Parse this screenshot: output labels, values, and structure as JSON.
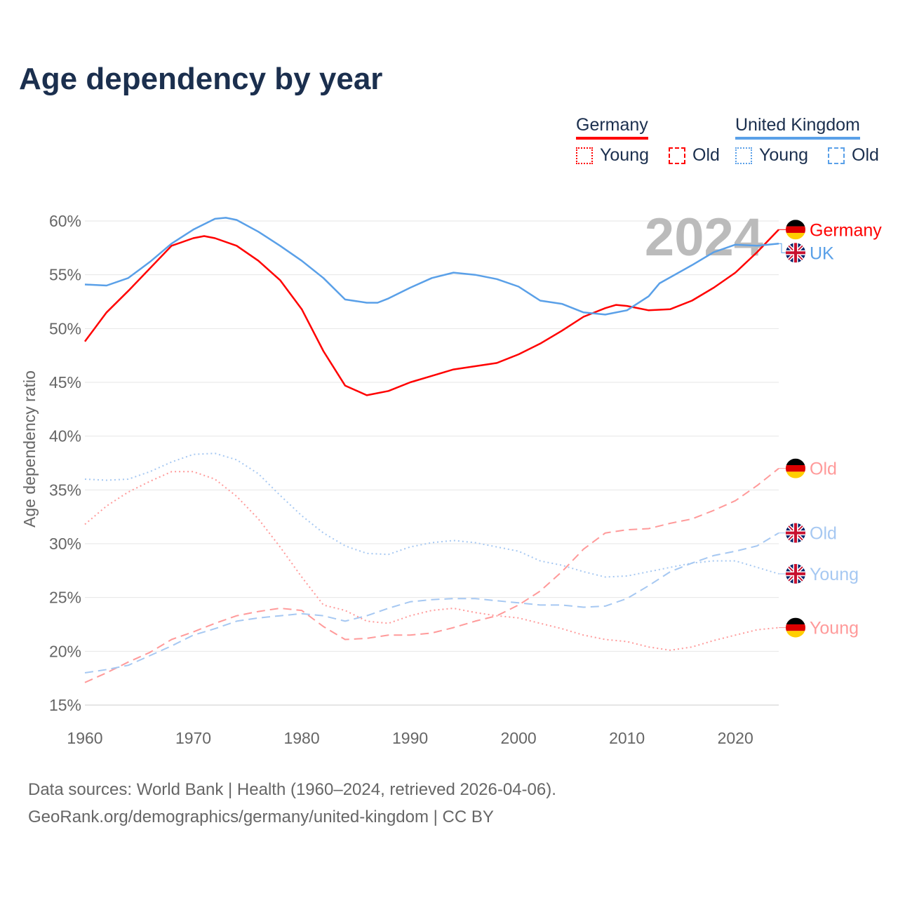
{
  "chart_data": {
    "type": "line",
    "title": "Age dependency by year",
    "xlabel": "",
    "ylabel": "Age dependency ratio",
    "xlim": [
      1960,
      2024
    ],
    "ylim": [
      15,
      60
    ],
    "x_ticks": [
      "1960",
      "1970",
      "1980",
      "1990",
      "2000",
      "2010",
      "2020"
    ],
    "y_ticks": [
      "15%",
      "20%",
      "25%",
      "30%",
      "35%",
      "40%",
      "45%",
      "50%",
      "55%",
      "60%"
    ],
    "y_tick_values": [
      15,
      20,
      25,
      30,
      35,
      40,
      45,
      50,
      55,
      60
    ],
    "grid": true,
    "year_overlay": "2024",
    "legend": {
      "placement": "top-right",
      "groups": [
        {
          "name": "Germany",
          "color": "#ff0000",
          "young": "Young",
          "old": "Old",
          "light": "#ff9a9a"
        },
        {
          "name": "United Kingdom",
          "color": "#5aa0e8",
          "young": "Young",
          "old": "Old",
          "light": "#a6c8f2"
        }
      ]
    },
    "series": [
      {
        "name": "Germany",
        "end_label": "Germany",
        "country": "de",
        "color": "#ff0000",
        "style": "solid",
        "x": [
          1960,
          1962,
          1964,
          1966,
          1968,
          1970,
          1971,
          1972,
          1974,
          1976,
          1978,
          1980,
          1982,
          1984,
          1986,
          1988,
          1990,
          1992,
          1994,
          1996,
          1998,
          2000,
          2002,
          2004,
          2006,
          2008,
          2009,
          2010,
          2012,
          2014,
          2016,
          2018,
          2020,
          2022,
          2024
        ],
        "values": [
          48.8,
          51.5,
          53.5,
          55.6,
          57.7,
          58.4,
          58.6,
          58.4,
          57.7,
          56.3,
          54.5,
          51.8,
          47.9,
          44.7,
          43.8,
          44.2,
          45.0,
          45.6,
          46.2,
          46.5,
          46.8,
          47.6,
          48.6,
          49.8,
          51.1,
          51.9,
          52.2,
          52.1,
          51.7,
          51.8,
          52.6,
          53.8,
          55.2,
          57.1,
          59.2
        ]
      },
      {
        "name": "United Kingdom",
        "end_label": "UK",
        "country": "uk",
        "color": "#5aa0e8",
        "style": "solid",
        "x": [
          1960,
          1962,
          1964,
          1966,
          1968,
          1970,
          1972,
          1973,
          1974,
          1976,
          1978,
          1980,
          1982,
          1984,
          1986,
          1987,
          1988,
          1990,
          1992,
          1994,
          1996,
          1998,
          2000,
          2002,
          2004,
          2006,
          2008,
          2010,
          2012,
          2013,
          2016,
          2018,
          2020,
          2022,
          2024
        ],
        "values": [
          54.1,
          54.0,
          54.7,
          56.2,
          57.9,
          59.2,
          60.2,
          60.3,
          60.1,
          59.0,
          57.7,
          56.3,
          54.7,
          52.7,
          52.4,
          52.4,
          52.8,
          53.8,
          54.7,
          55.2,
          55.0,
          54.6,
          53.9,
          52.6,
          52.3,
          51.5,
          51.3,
          51.7,
          53.0,
          54.2,
          55.9,
          57.1,
          57.8,
          57.7,
          57.9
        ]
      },
      {
        "name": "Germany Old",
        "end_label": "Old",
        "country": "de",
        "color": "#ff9a9a",
        "style": "dashed",
        "x": [
          1960,
          1962,
          1964,
          1966,
          1968,
          1970,
          1972,
          1974,
          1976,
          1978,
          1980,
          1982,
          1984,
          1986,
          1988,
          1990,
          1992,
          1994,
          1996,
          1998,
          2000,
          2002,
          2004,
          2006,
          2008,
          2010,
          2012,
          2014,
          2016,
          2018,
          2020,
          2022,
          2024
        ],
        "values": [
          17.1,
          18.0,
          19.0,
          19.9,
          21.1,
          21.8,
          22.6,
          23.3,
          23.7,
          24.0,
          23.8,
          22.3,
          21.1,
          21.2,
          21.5,
          21.5,
          21.7,
          22.2,
          22.8,
          23.3,
          24.3,
          25.6,
          27.4,
          29.5,
          31.0,
          31.3,
          31.4,
          31.9,
          32.3,
          33.1,
          34.0,
          35.4,
          37.0
        ]
      },
      {
        "name": "United Kingdom Old",
        "end_label": "Old",
        "country": "uk",
        "color": "#a6c8f2",
        "style": "dashed",
        "x": [
          1960,
          1962,
          1964,
          1966,
          1968,
          1970,
          1972,
          1974,
          1976,
          1978,
          1980,
          1982,
          1984,
          1986,
          1988,
          1990,
          1992,
          1994,
          1996,
          1998,
          2000,
          2002,
          2004,
          2006,
          2008,
          2010,
          2012,
          2014,
          2016,
          2018,
          2020,
          2022,
          2024
        ],
        "values": [
          18.0,
          18.3,
          18.7,
          19.6,
          20.5,
          21.5,
          22.1,
          22.8,
          23.1,
          23.3,
          23.5,
          23.3,
          22.8,
          23.3,
          24.0,
          24.6,
          24.8,
          24.9,
          24.9,
          24.7,
          24.5,
          24.3,
          24.3,
          24.1,
          24.2,
          24.9,
          26.1,
          27.4,
          28.2,
          28.9,
          29.3,
          29.8,
          31.0
        ]
      },
      {
        "name": "United Kingdom Young",
        "end_label": "Young",
        "country": "uk",
        "color": "#a6c8f2",
        "style": "dotted",
        "x": [
          1960,
          1962,
          1964,
          1966,
          1968,
          1970,
          1972,
          1974,
          1976,
          1978,
          1980,
          1982,
          1984,
          1986,
          1988,
          1990,
          1992,
          1994,
          1996,
          1998,
          2000,
          2002,
          2004,
          2006,
          2008,
          2010,
          2012,
          2014,
          2016,
          2018,
          2020,
          2022,
          2024
        ],
        "values": [
          36.0,
          35.9,
          36.0,
          36.7,
          37.6,
          38.3,
          38.4,
          37.8,
          36.5,
          34.5,
          32.6,
          31.0,
          29.8,
          29.1,
          29.0,
          29.7,
          30.1,
          30.3,
          30.1,
          29.7,
          29.3,
          28.4,
          28.0,
          27.4,
          26.9,
          27.0,
          27.4,
          27.8,
          28.2,
          28.4,
          28.4,
          27.8,
          27.2
        ]
      },
      {
        "name": "Germany Young",
        "end_label": "Young",
        "country": "de",
        "color": "#ff9a9a",
        "style": "dotted",
        "x": [
          1960,
          1962,
          1964,
          1966,
          1968,
          1970,
          1972,
          1974,
          1976,
          1978,
          1980,
          1982,
          1984,
          1986,
          1988,
          1990,
          1992,
          1994,
          1996,
          1998,
          2000,
          2002,
          2004,
          2006,
          2008,
          2010,
          2012,
          2014,
          2016,
          2018,
          2020,
          2022,
          2024
        ],
        "values": [
          31.8,
          33.5,
          34.8,
          35.8,
          36.7,
          36.7,
          36.0,
          34.4,
          32.3,
          29.7,
          26.9,
          24.3,
          23.8,
          22.8,
          22.6,
          23.3,
          23.8,
          24.0,
          23.6,
          23.3,
          23.1,
          22.6,
          22.1,
          21.5,
          21.1,
          20.9,
          20.4,
          20.1,
          20.4,
          21.0,
          21.5,
          22.0,
          22.2
        ]
      }
    ]
  },
  "footer": {
    "line1": "Data sources: World Bank | Health (1960–2024, retrieved 2026-04-06).",
    "line2": "GeoRank.org/demographics/germany/united-kingdom | CC BY"
  }
}
